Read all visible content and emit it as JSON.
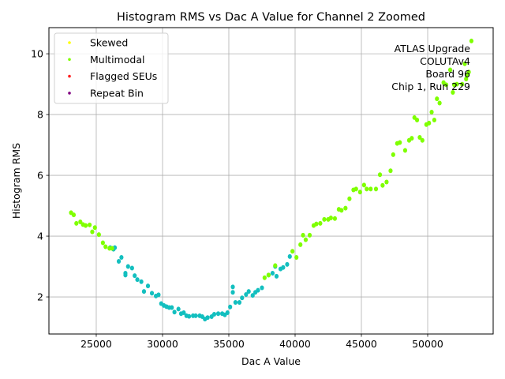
{
  "chart_data": {
    "type": "scatter",
    "title": "Histogram RMS vs Dac A Value for Channel 2 Zoomed",
    "xlabel": "Dac A Value",
    "ylabel": "Histogram RMS",
    "xlim": [
      21430,
      54940
    ],
    "ylim": [
      0.78,
      10.86
    ],
    "xticks": [
      25000,
      30000,
      35000,
      40000,
      45000,
      50000
    ],
    "xtick_labels": [
      "25000",
      "30000",
      "35000",
      "40000",
      "45000",
      "50000"
    ],
    "yticks": [
      2,
      4,
      6,
      8,
      10
    ],
    "ytick_labels": [
      "2",
      "4",
      "6",
      "8",
      "10"
    ],
    "grid": true,
    "legend": {
      "placement": "top-left",
      "entries": [
        {
          "label": "Skewed",
          "color": "#ffff00"
        },
        {
          "label": "Multimodal",
          "color": "#7fff00"
        },
        {
          "label": "Flagged SEUs",
          "color": "#ff2020"
        },
        {
          "label": "Repeat Bin",
          "color": "#800080"
        }
      ]
    },
    "annotation": {
      "placement": "top-right",
      "lines": [
        "ATLAS Upgrade",
        "COLUTAv4",
        "Board 96",
        "Chip 1, Run 229"
      ]
    },
    "colors": {
      "normal": "#13bfbf",
      "multimodal": "#7fff00"
    },
    "series": [
      {
        "name": "Normal",
        "color": "#13bfbf",
        "points": [
          [
            26050,
            3.62
          ],
          [
            26300,
            3.57
          ],
          [
            26400,
            3.62
          ],
          [
            26700,
            3.17
          ],
          [
            26900,
            3.3
          ],
          [
            27200,
            2.78
          ],
          [
            27200,
            2.72
          ],
          [
            27400,
            3.0
          ],
          [
            27700,
            2.95
          ],
          [
            27900,
            2.7
          ],
          [
            28100,
            2.57
          ],
          [
            28400,
            2.5
          ],
          [
            28600,
            2.18
          ],
          [
            28900,
            2.36
          ],
          [
            29200,
            2.12
          ],
          [
            29500,
            2.03
          ],
          [
            29700,
            2.07
          ],
          [
            29900,
            1.78
          ],
          [
            30100,
            1.72
          ],
          [
            30300,
            1.68
          ],
          [
            30500,
            1.65
          ],
          [
            30700,
            1.65
          ],
          [
            30900,
            1.5
          ],
          [
            31200,
            1.6
          ],
          [
            31400,
            1.45
          ],
          [
            31600,
            1.48
          ],
          [
            31800,
            1.38
          ],
          [
            32000,
            1.36
          ],
          [
            32300,
            1.38
          ],
          [
            32500,
            1.38
          ],
          [
            32800,
            1.38
          ],
          [
            33000,
            1.35
          ],
          [
            33200,
            1.27
          ],
          [
            33400,
            1.32
          ],
          [
            33700,
            1.35
          ],
          [
            33900,
            1.43
          ],
          [
            34200,
            1.45
          ],
          [
            34500,
            1.45
          ],
          [
            34700,
            1.41
          ],
          [
            34900,
            1.48
          ],
          [
            35100,
            1.67
          ],
          [
            35300,
            2.33
          ],
          [
            35300,
            2.15
          ],
          [
            35500,
            1.82
          ],
          [
            35800,
            1.82
          ],
          [
            36000,
            1.97
          ],
          [
            36300,
            2.08
          ],
          [
            36500,
            2.18
          ],
          [
            36800,
            2.05
          ],
          [
            37000,
            2.15
          ],
          [
            37200,
            2.22
          ],
          [
            37500,
            2.3
          ],
          [
            38000,
            2.72
          ],
          [
            38300,
            2.78
          ],
          [
            38600,
            2.68
          ],
          [
            38900,
            2.92
          ],
          [
            39100,
            2.97
          ],
          [
            39400,
            3.07
          ],
          [
            39600,
            3.33
          ],
          [
            38500,
            3.0
          ]
        ]
      },
      {
        "name": "Multimodal",
        "color": "#7fff00",
        "points": [
          [
            23100,
            4.77
          ],
          [
            23300,
            4.7
          ],
          [
            23500,
            4.42
          ],
          [
            23800,
            4.47
          ],
          [
            24000,
            4.38
          ],
          [
            24200,
            4.35
          ],
          [
            24500,
            4.37
          ],
          [
            24700,
            4.14
          ],
          [
            24900,
            4.28
          ],
          [
            25200,
            4.05
          ],
          [
            25500,
            3.78
          ],
          [
            25700,
            3.65
          ],
          [
            26000,
            3.6
          ],
          [
            26200,
            3.6
          ],
          [
            37700,
            2.63
          ],
          [
            38000,
            2.72
          ],
          [
            38500,
            3.03
          ],
          [
            39800,
            3.5
          ],
          [
            40100,
            3.3
          ],
          [
            40400,
            3.72
          ],
          [
            40600,
            4.03
          ],
          [
            40800,
            3.88
          ],
          [
            41100,
            4.03
          ],
          [
            41400,
            4.35
          ],
          [
            41600,
            4.4
          ],
          [
            41900,
            4.42
          ],
          [
            42200,
            4.55
          ],
          [
            42500,
            4.55
          ],
          [
            42700,
            4.6
          ],
          [
            43000,
            4.58
          ],
          [
            43300,
            4.88
          ],
          [
            43500,
            4.85
          ],
          [
            43800,
            4.92
          ],
          [
            44100,
            5.23
          ],
          [
            44400,
            5.52
          ],
          [
            44600,
            5.55
          ],
          [
            44900,
            5.45
          ],
          [
            45200,
            5.68
          ],
          [
            45400,
            5.55
          ],
          [
            45700,
            5.55
          ],
          [
            46100,
            5.55
          ],
          [
            46400,
            6.02
          ],
          [
            46600,
            5.67
          ],
          [
            46900,
            5.78
          ],
          [
            47200,
            6.15
          ],
          [
            47400,
            6.68
          ],
          [
            47700,
            7.05
          ],
          [
            47900,
            7.08
          ],
          [
            48300,
            6.82
          ],
          [
            48600,
            7.15
          ],
          [
            48800,
            7.22
          ],
          [
            49000,
            7.9
          ],
          [
            49200,
            7.82
          ],
          [
            49400,
            7.25
          ],
          [
            49600,
            7.15
          ],
          [
            49900,
            7.67
          ],
          [
            50100,
            7.72
          ],
          [
            50300,
            8.08
          ],
          [
            50500,
            7.82
          ],
          [
            50700,
            8.52
          ],
          [
            50900,
            8.38
          ],
          [
            51400,
            8.98
          ],
          [
            51700,
            9.47
          ],
          [
            51900,
            8.73
          ],
          [
            52000,
            8.98
          ],
          [
            52200,
            9.0
          ],
          [
            52600,
            9.0
          ],
          [
            52800,
            9.67
          ],
          [
            52900,
            9.17
          ],
          [
            53100,
            9.4
          ],
          [
            53300,
            10.42
          ],
          [
            53000,
            9.3
          ],
          [
            51200,
            9.05
          ]
        ]
      }
    ]
  }
}
